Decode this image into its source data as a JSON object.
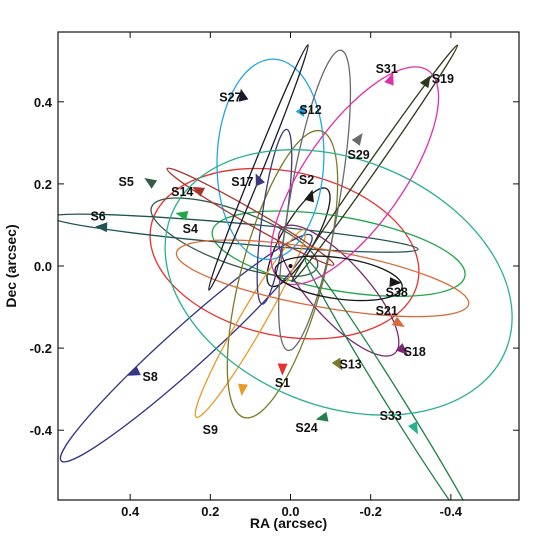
{
  "chart_data": {
    "type": "scatter",
    "title": "",
    "xlabel": "RA (arcsec)",
    "ylabel": "Dec (arcsec)",
    "x_reversed": true,
    "xlim": [
      0.58,
      -0.57
    ],
    "ylim": [
      -0.57,
      0.57
    ],
    "xticks": [
      0.4,
      0.2,
      0.0,
      -0.2,
      -0.4
    ],
    "xtick_labels": [
      "0.4",
      "0.2",
      "0.0",
      "-0.2",
      "-0.4"
    ],
    "yticks": [
      0.4,
      0.2,
      0.0,
      -0.2,
      -0.4
    ],
    "ytick_labels": [
      "0.4",
      "0.2",
      "0.0",
      "-0.2",
      "-0.4"
    ],
    "grid": false,
    "center": [
      0.0,
      0.0
    ],
    "series": [
      {
        "name": "S1",
        "color": "#e8302f",
        "ellipse": {
          "cx": 0.015,
          "cy": 0.03,
          "a": 0.34,
          "b": 0.2,
          "angle": -12
        },
        "marker": [
          0.02,
          -0.25
        ],
        "label_pos": [
          0.02,
          -0.285
        ]
      },
      {
        "name": "S2",
        "color": "#1a1a1a",
        "ellipse": {
          "cx": -0.02,
          "cy": 0.07,
          "a": 0.14,
          "b": 0.04,
          "angle": 60
        },
        "marker": [
          -0.05,
          0.17
        ],
        "label_pos": [
          -0.04,
          0.21
        ]
      },
      {
        "name": "S4",
        "color": "#20a84a",
        "ellipse": {
          "cx": -0.12,
          "cy": 0.03,
          "a": 0.32,
          "b": 0.09,
          "angle": -10
        },
        "marker": [
          0.27,
          0.125
        ],
        "label_pos": [
          0.25,
          0.09
        ]
      },
      {
        "name": "S5",
        "color": "#3a5a48",
        "ellipse": {
          "cx": 0.14,
          "cy": 0.07,
          "a": 0.22,
          "b": 0.065,
          "angle": -20
        },
        "marker": [
          0.35,
          0.205
        ],
        "label_pos": [
          0.41,
          0.205
        ]
      },
      {
        "name": "S6",
        "color": "#1e5454",
        "ellipse": {
          "cx": 0.14,
          "cy": 0.08,
          "a": 0.46,
          "b": 0.025,
          "angle": -5
        },
        "marker": [
          0.47,
          0.095
        ],
        "label_pos": [
          0.48,
          0.12
        ]
      },
      {
        "name": "S8",
        "color": "#343488",
        "ellipse": {
          "cx": 0.26,
          "cy": -0.2,
          "a": 0.42,
          "b": 0.05,
          "angle": 42
        },
        "marker": [
          0.39,
          -0.26
        ],
        "label_pos": [
          0.35,
          -0.27
        ]
      },
      {
        "name": "S9",
        "color": "#e89a2a",
        "ellipse": {
          "cx": 0.1,
          "cy": -0.14,
          "a": 0.27,
          "b": 0.03,
          "angle": 60
        },
        "marker": [
          0.12,
          -0.3
        ],
        "label_pos": [
          0.2,
          -0.4
        ]
      },
      {
        "name": "S12",
        "color": "#22a8e0",
        "ellipse": {
          "cx": 0.05,
          "cy": 0.26,
          "a": 0.25,
          "b": 0.13,
          "angle": 88
        },
        "marker": [
          -0.03,
          0.38
        ],
        "label_pos": [
          -0.05,
          0.38
        ]
      },
      {
        "name": "S13",
        "color": "#7a7a28",
        "ellipse": {
          "cx": 0.02,
          "cy": -0.02,
          "a": 0.37,
          "b": 0.1,
          "angle": 75
        },
        "marker": [
          -0.12,
          -0.24
        ],
        "label_pos": [
          -0.15,
          -0.24
        ]
      },
      {
        "name": "S14",
        "color": "#a8342a",
        "ellipse": {
          "cx": 0.1,
          "cy": 0.12,
          "a": 0.24,
          "b": 0.018,
          "angle": -30
        },
        "marker": [
          0.23,
          0.185
        ],
        "label_pos": [
          0.27,
          0.18
        ]
      },
      {
        "name": "S17",
        "color": "#3a3a7a",
        "ellipse": {
          "cx": 0.04,
          "cy": 0.12,
          "a": 0.22,
          "b": 0.03,
          "angle": 82
        },
        "marker": [
          0.08,
          0.21
        ],
        "label_pos": [
          0.12,
          0.205
        ]
      },
      {
        "name": "S18",
        "color": "#7a2a72",
        "ellipse": {
          "cx": -0.12,
          "cy": -0.06,
          "a": 0.21,
          "b": 0.07,
          "angle": -48
        },
        "marker": [
          -0.28,
          -0.205
        ],
        "label_pos": [
          -0.31,
          -0.21
        ]
      },
      {
        "name": "S19",
        "color": "#2a3a18",
        "ellipse": {
          "cx": -0.21,
          "cy": 0.25,
          "a": 0.36,
          "b": 0.012,
          "angle": 55
        },
        "marker": [
          -0.34,
          0.45
        ],
        "label_pos": [
          -0.38,
          0.455
        ]
      },
      {
        "name": "S21",
        "color": "#d86a3a",
        "ellipse": {
          "cx": -0.08,
          "cy": -0.03,
          "a": 0.37,
          "b": 0.07,
          "angle": -10
        },
        "marker": [
          -0.27,
          -0.14
        ],
        "label_pos": [
          -0.24,
          -0.11
        ]
      },
      {
        "name": "S24",
        "color": "#208048",
        "ellipse": {
          "cx": -0.26,
          "cy": -0.33,
          "a": 0.42,
          "b": 0.02,
          "angle": -58
        },
        "marker": [
          -0.08,
          -0.37
        ],
        "label_pos": [
          -0.04,
          -0.395
        ]
      },
      {
        "name": "S27",
        "color": "#1a1a2a",
        "ellipse": {
          "cx": 0.08,
          "cy": 0.24,
          "a": 0.33,
          "b": 0.012,
          "angle": 68
        },
        "marker": [
          0.12,
          0.415
        ],
        "label_pos": [
          0.15,
          0.41
        ]
      },
      {
        "name": "S29",
        "color": "#6a6a6a",
        "ellipse": {
          "cx": -0.06,
          "cy": 0.16,
          "a": 0.38,
          "b": 0.06,
          "angle": 80
        },
        "marker": [
          -0.17,
          0.31
        ],
        "label_pos": [
          -0.17,
          0.27
        ]
      },
      {
        "name": "S31",
        "color": "#e030a8",
        "ellipse": {
          "cx": -0.16,
          "cy": 0.22,
          "a": 0.32,
          "b": 0.12,
          "angle": 55
        },
        "marker": [
          -0.25,
          0.455
        ],
        "label_pos": [
          -0.24,
          0.48
        ]
      },
      {
        "name": "S33",
        "color": "#28b090",
        "ellipse": {
          "cx": -0.12,
          "cy": -0.04,
          "a": 0.45,
          "b": 0.3,
          "angle": -22
        },
        "marker": [
          -0.31,
          -0.395
        ],
        "label_pos": [
          -0.25,
          -0.365
        ]
      },
      {
        "name": "S38",
        "color": "#181818",
        "ellipse": {
          "cx": -0.12,
          "cy": -0.03,
          "a": 0.16,
          "b": 0.05,
          "angle": -8
        },
        "marker": [
          -0.26,
          -0.04
        ],
        "label_pos": [
          -0.265,
          -0.065
        ]
      }
    ]
  }
}
